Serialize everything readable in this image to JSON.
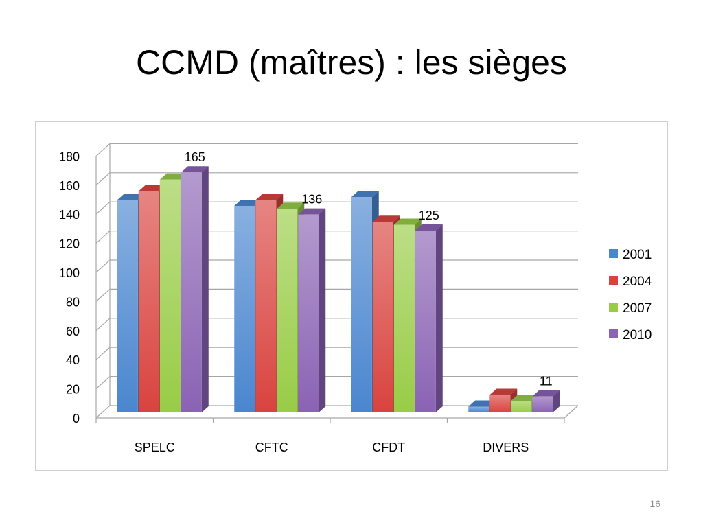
{
  "slide": {
    "title": "CCMD (maîtres) : les sièges",
    "page_number": "16"
  },
  "chart_data": {
    "type": "bar",
    "categories": [
      "SPELC",
      "CFTC",
      "CFDT",
      "DIVERS"
    ],
    "series": [
      {
        "name": "2001",
        "values": [
          146,
          142,
          148,
          4
        ],
        "color": "#4a86cf"
      },
      {
        "name": "2004",
        "values": [
          152,
          146,
          131,
          12
        ],
        "color": "#d9433f"
      },
      {
        "name": "2007",
        "values": [
          160,
          140,
          129,
          8
        ],
        "color": "#98cc46"
      },
      {
        "name": "2010",
        "values": [
          165,
          136,
          125,
          11
        ],
        "color": "#8a63b4"
      }
    ],
    "data_labels": [
      {
        "series": "2010",
        "category": "SPELC",
        "text": "165"
      },
      {
        "series": "2010",
        "category": "CFTC",
        "text": "136"
      },
      {
        "series": "2010",
        "category": "CFDT",
        "text": "125"
      },
      {
        "series": "2010",
        "category": "DIVERS",
        "text": "11"
      }
    ],
    "yticks": [
      "0",
      "20",
      "40",
      "60",
      "80",
      "100",
      "120",
      "140",
      "160",
      "180"
    ],
    "ylim": [
      0,
      180
    ],
    "grid": true,
    "legend_position": "right",
    "style": "3d-clustered"
  }
}
